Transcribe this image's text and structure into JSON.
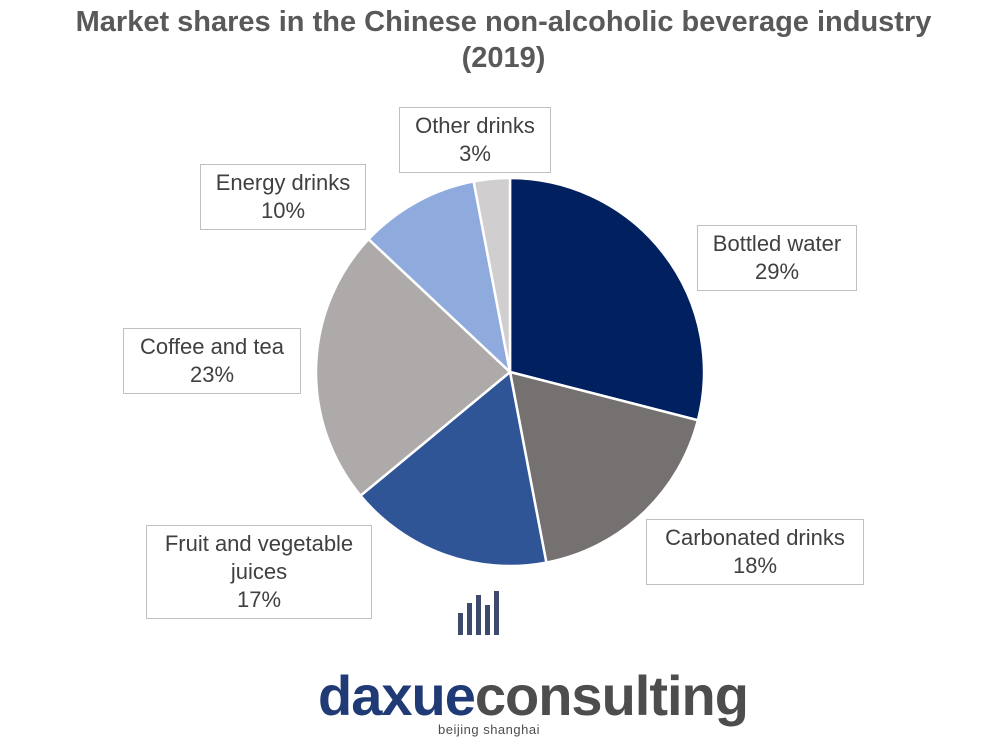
{
  "title": {
    "line1": "Market shares in the Chinese non-alcoholic beverage industry",
    "line2": "(2019)"
  },
  "chart_data": {
    "type": "pie",
    "title": "Market shares in the Chinese non-alcoholic beverage industry (2019)",
    "categories": [
      "Bottled water",
      "Carbonated drinks",
      "Fruit and vegetable juices",
      "Coffee and tea",
      "Energy drinks",
      "Other drinks"
    ],
    "values": [
      29,
      18,
      17,
      23,
      10,
      3
    ],
    "labels": [
      "29%",
      "18%",
      "17%",
      "23%",
      "10%",
      "3%"
    ],
    "colors": [
      "#002060",
      "#767171",
      "#2f5597",
      "#aeaaaa",
      "#8faadc",
      "#d0cece"
    ],
    "unit": "%"
  },
  "logo": {
    "brand_part1": "daxue",
    "brand_part2": "consulting",
    "tagline": "beijing shanghai"
  }
}
